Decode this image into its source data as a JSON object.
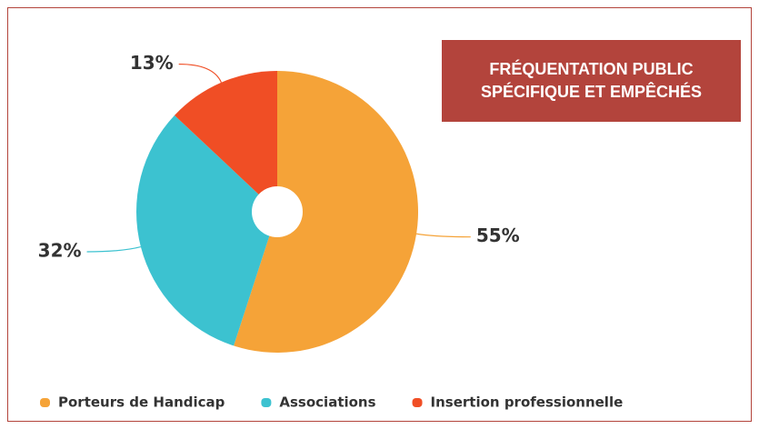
{
  "chart_data": {
    "type": "pie",
    "title": "FRÉQUENTATION PUBLIC SPÉCIFIQUE ET EMPÊCHÉS",
    "categories": [
      "Porteurs de Handicap",
      "Associations",
      "Insertion professionnelle"
    ],
    "values": [
      55,
      32,
      13
    ],
    "value_labels": [
      "55%",
      "32%",
      "13%"
    ],
    "colors": [
      "#f5a338",
      "#3cc2d0",
      "#f04e25"
    ],
    "donut": true,
    "legend": "bottom"
  }
}
